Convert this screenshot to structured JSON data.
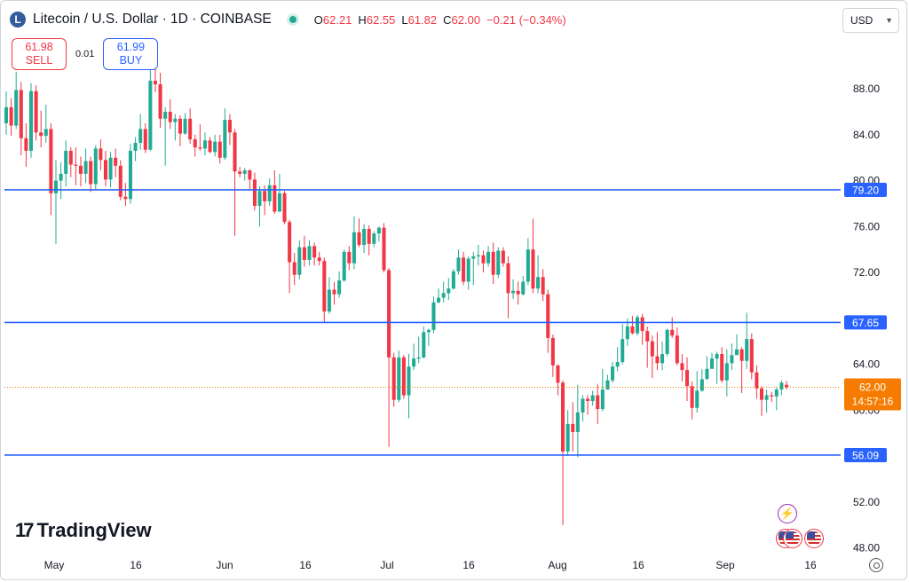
{
  "header": {
    "symbol_icon": "L",
    "title": "Litecoin / U.S. Dollar · 1D · COINBASE",
    "ohlc": [
      {
        "key": "O",
        "value": "62.21"
      },
      {
        "key": "H",
        "value": "62.55"
      },
      {
        "key": "L",
        "value": "61.82"
      },
      {
        "key": "C",
        "value": "62.00"
      }
    ],
    "change": "−0.21 (−0.34%)"
  },
  "currency": {
    "label": "USD",
    "icon": "chevron-down-icon"
  },
  "trade": {
    "sell_price": "61.98",
    "sell_label": "SELL",
    "spread": "0.01",
    "buy_price": "61.99",
    "buy_label": "BUY"
  },
  "branding": {
    "name": "TradingView"
  },
  "colors": {
    "up": "#22ab94",
    "down": "#f23645",
    "line": "#2962ff",
    "last_price": "#f57c00"
  },
  "chart_data": {
    "type": "candlestick",
    "title": "Litecoin / U.S. Dollar · 1D · COINBASE",
    "y_ticks": [
      "88.00",
      "84.00",
      "80.00",
      "76.00",
      "72.00",
      "64.00",
      "60.00",
      "52.00",
      "48.00"
    ],
    "x_ticks": [
      "May",
      "16",
      "Jun",
      "16",
      "Jul",
      "16",
      "Aug",
      "16",
      "Sep",
      "16"
    ],
    "ylim": [
      46.5,
      93.5
    ],
    "grid": false,
    "horizontal_lines": [
      {
        "value": 79.2,
        "label": "79.20"
      },
      {
        "value": 67.65,
        "label": "67.65"
      },
      {
        "value": 56.09,
        "label": "56.09"
      }
    ],
    "last_price": {
      "value": 62.0,
      "label": "62.00",
      "countdown": "14:57:16"
    },
    "candles": [
      [
        85.0,
        86.4,
        87.8,
        84.0
      ],
      [
        86.4,
        84.8,
        87.2,
        83.9
      ],
      [
        84.8,
        87.9,
        89.5,
        84.5
      ],
      [
        87.9,
        83.7,
        88.6,
        82.2
      ],
      [
        83.7,
        82.6,
        85.0,
        81.2
      ],
      [
        82.6,
        87.8,
        88.5,
        82.0
      ],
      [
        87.8,
        84.2,
        88.3,
        83.5
      ],
      [
        84.2,
        83.9,
        86.1,
        82.9
      ],
      [
        83.9,
        84.5,
        86.6,
        83.3
      ],
      [
        84.5,
        78.9,
        85.0,
        77.0
      ],
      [
        78.9,
        80.0,
        81.8,
        74.5
      ],
      [
        80.0,
        80.6,
        81.6,
        78.4
      ],
      [
        80.6,
        82.6,
        83.5,
        79.5
      ],
      [
        82.6,
        81.4,
        82.9,
        80.3
      ],
      [
        81.4,
        81.3,
        82.9,
        79.6
      ],
      [
        81.3,
        80.6,
        82.1,
        79.5
      ],
      [
        80.6,
        81.7,
        82.8,
        79.8
      ],
      [
        81.7,
        79.7,
        82.1,
        79.0
      ],
      [
        79.7,
        82.8,
        83.1,
        79.2
      ],
      [
        82.8,
        81.8,
        83.6,
        80.9
      ],
      [
        81.8,
        80.1,
        82.6,
        79.5
      ],
      [
        80.1,
        82.0,
        82.5,
        79.4
      ],
      [
        82.0,
        81.3,
        82.8,
        80.3
      ],
      [
        81.3,
        78.6,
        81.8,
        78.3
      ],
      [
        78.6,
        78.4,
        79.8,
        77.8
      ],
      [
        78.4,
        82.6,
        83.2,
        78.0
      ],
      [
        82.6,
        83.3,
        83.8,
        81.7
      ],
      [
        83.3,
        84.5,
        85.8,
        82.7
      ],
      [
        84.5,
        82.7,
        85.0,
        82.4
      ],
      [
        82.7,
        88.7,
        91.4,
        82.6
      ],
      [
        88.7,
        88.4,
        90.4,
        87.7
      ],
      [
        88.4,
        85.4,
        89.4,
        84.6
      ],
      [
        85.4,
        86.0,
        86.4,
        81.3
      ],
      [
        86.0,
        85.1,
        87.1,
        84.5
      ],
      [
        85.1,
        85.4,
        85.8,
        83.5
      ],
      [
        85.4,
        84.1,
        85.7,
        83.0
      ],
      [
        84.1,
        85.4,
        85.9,
        84.0
      ],
      [
        85.4,
        83.6,
        86.3,
        83.2
      ],
      [
        83.6,
        82.9,
        84.0,
        82.1
      ],
      [
        82.9,
        82.8,
        84.9,
        82.6
      ],
      [
        82.8,
        83.5,
        84.2,
        82.2
      ],
      [
        83.5,
        82.5,
        83.8,
        82.4
      ],
      [
        82.5,
        83.4,
        84.0,
        82.1
      ],
      [
        83.4,
        82.0,
        84.0,
        81.5
      ],
      [
        82.0,
        85.3,
        86.3,
        81.8
      ],
      [
        85.3,
        84.2,
        85.8,
        83.1
      ],
      [
        84.2,
        80.8,
        84.5,
        75.2
      ],
      [
        80.8,
        80.6,
        81.2,
        80.3
      ],
      [
        80.6,
        80.9,
        81.1,
        80.0
      ],
      [
        80.9,
        80.1,
        81.0,
        79.2
      ],
      [
        80.1,
        77.8,
        80.7,
        77.4
      ],
      [
        77.8,
        79.1,
        79.5,
        76.0
      ],
      [
        79.1,
        78.2,
        79.6,
        77.0
      ],
      [
        78.2,
        79.6,
        80.2,
        77.8
      ],
      [
        79.6,
        77.3,
        80.9,
        77.1
      ],
      [
        77.3,
        78.9,
        80.6,
        77.4
      ],
      [
        78.9,
        76.4,
        79.1,
        76.2
      ],
      [
        76.4,
        72.9,
        76.6,
        70.2
      ],
      [
        72.9,
        71.8,
        73.7,
        70.9
      ],
      [
        71.8,
        74.2,
        74.8,
        71.4
      ],
      [
        74.2,
        73.1,
        75.2,
        72.5
      ],
      [
        73.1,
        74.3,
        74.8,
        72.6
      ],
      [
        74.3,
        73.3,
        74.6,
        72.6
      ],
      [
        73.3,
        73.0,
        73.8,
        72.6
      ],
      [
        73.0,
        68.6,
        73.3,
        67.6
      ],
      [
        68.6,
        70.5,
        71.6,
        68.4
      ],
      [
        70.5,
        70.1,
        71.2,
        69.2
      ],
      [
        70.1,
        71.3,
        72.1,
        69.8
      ],
      [
        71.3,
        73.8,
        74.0,
        71.2
      ],
      [
        73.8,
        72.8,
        74.3,
        72.2
      ],
      [
        72.8,
        75.5,
        76.9,
        72.3
      ],
      [
        75.5,
        74.4,
        76.7,
        74.2
      ],
      [
        74.4,
        75.8,
        76.2,
        73.7
      ],
      [
        75.8,
        74.5,
        76.1,
        73.5
      ],
      [
        74.5,
        75.4,
        75.6,
        74.2
      ],
      [
        75.4,
        75.9,
        76.0,
        74.7
      ],
      [
        75.9,
        72.2,
        76.3,
        72.0
      ],
      [
        72.2,
        64.6,
        72.4,
        56.8
      ],
      [
        64.6,
        60.9,
        65.0,
        60.3
      ],
      [
        60.9,
        64.6,
        65.2,
        60.7
      ],
      [
        64.6,
        61.3,
        64.8,
        61.0
      ],
      [
        61.3,
        63.8,
        64.9,
        59.3
      ],
      [
        63.8,
        64.5,
        65.8,
        63.5
      ],
      [
        64.5,
        64.6,
        66.4,
        64.1
      ],
      [
        64.6,
        66.8,
        67.3,
        64.5
      ],
      [
        66.8,
        67.0,
        67.1,
        65.6
      ],
      [
        67.0,
        69.4,
        69.9,
        66.7
      ],
      [
        69.4,
        69.8,
        70.6,
        69.3
      ],
      [
        69.8,
        70.2,
        71.2,
        69.4
      ],
      [
        70.2,
        70.6,
        71.5,
        69.6
      ],
      [
        70.6,
        72.1,
        72.3,
        70.5
      ],
      [
        72.1,
        73.3,
        74.0,
        71.8
      ],
      [
        73.3,
        71.2,
        73.8,
        70.9
      ],
      [
        71.2,
        73.2,
        73.4,
        70.5
      ],
      [
        73.2,
        73.4,
        73.8,
        70.9
      ],
      [
        73.4,
        73.5,
        74.4,
        72.6
      ],
      [
        73.5,
        72.8,
        73.9,
        72.0
      ],
      [
        72.8,
        73.8,
        74.3,
        72.5
      ],
      [
        73.8,
        71.8,
        74.6,
        71.0
      ],
      [
        71.8,
        73.9,
        74.2,
        71.5
      ],
      [
        73.9,
        72.8,
        74.2,
        72.5
      ],
      [
        72.8,
        70.2,
        73.4,
        68.0
      ],
      [
        70.2,
        70.4,
        71.4,
        69.7
      ],
      [
        70.4,
        70.1,
        71.2,
        69.2
      ],
      [
        70.1,
        71.2,
        71.7,
        70.0
      ],
      [
        71.2,
        74.0,
        75.0,
        70.9
      ],
      [
        74.0,
        70.6,
        76.7,
        70.2
      ],
      [
        70.6,
        71.6,
        73.5,
        70.2
      ],
      [
        71.6,
        70.1,
        72.3,
        69.5
      ],
      [
        70.1,
        66.3,
        70.5,
        65.0
      ],
      [
        66.3,
        63.9,
        66.6,
        62.9
      ],
      [
        63.9,
        62.4,
        64.0,
        61.3
      ],
      [
        62.4,
        56.4,
        62.6,
        50.0
      ],
      [
        56.4,
        58.8,
        60.0,
        56.0
      ],
      [
        58.8,
        58.1,
        60.7,
        56.4
      ],
      [
        58.1,
        59.8,
        62.2,
        55.9
      ],
      [
        59.8,
        61.0,
        61.3,
        59.0
      ],
      [
        61.0,
        60.8,
        61.3,
        59.6
      ],
      [
        60.8,
        61.3,
        61.7,
        60.4
      ],
      [
        61.3,
        60.1,
        62.3,
        58.8
      ],
      [
        60.1,
        61.8,
        63.6,
        59.9
      ],
      [
        61.8,
        62.6,
        63.1,
        61.8
      ],
      [
        62.6,
        63.8,
        64.2,
        62.4
      ],
      [
        63.8,
        64.2,
        65.5,
        63.4
      ],
      [
        64.2,
        66.2,
        67.5,
        64.0
      ],
      [
        66.2,
        67.3,
        68.0,
        65.6
      ],
      [
        67.3,
        66.7,
        68.2,
        66.6
      ],
      [
        66.7,
        68.1,
        68.3,
        66.5
      ],
      [
        68.1,
        66.9,
        68.4,
        65.7
      ],
      [
        66.9,
        66.0,
        67.3,
        63.7
      ],
      [
        66.0,
        64.7,
        66.5,
        62.8
      ],
      [
        64.7,
        64.1,
        66.8,
        63.5
      ],
      [
        64.1,
        64.9,
        66.0,
        63.5
      ],
      [
        64.9,
        67.0,
        67.1,
        64.7
      ],
      [
        67.0,
        66.5,
        68.1,
        66.3
      ],
      [
        66.5,
        64.1,
        67.2,
        63.9
      ],
      [
        64.1,
        63.5,
        64.9,
        62.5
      ],
      [
        63.5,
        62.1,
        64.6,
        60.8
      ],
      [
        62.1,
        60.2,
        62.5,
        59.2
      ],
      [
        60.2,
        61.7,
        63.4,
        59.8
      ],
      [
        61.7,
        62.7,
        63.6,
        61.6
      ],
      [
        62.7,
        63.6,
        64.7,
        63.5
      ],
      [
        63.6,
        64.5,
        65.0,
        63.8
      ],
      [
        64.5,
        64.9,
        65.1,
        62.3
      ],
      [
        64.9,
        62.6,
        65.5,
        62.4
      ],
      [
        62.6,
        64.1,
        65.3,
        61.2
      ],
      [
        64.1,
        64.8,
        65.8,
        63.5
      ],
      [
        64.8,
        65.3,
        66.6,
        64.9
      ],
      [
        65.3,
        64.3,
        65.5,
        61.5
      ],
      [
        64.3,
        66.2,
        68.5,
        63.6
      ],
      [
        66.2,
        63.3,
        66.7,
        62.7
      ],
      [
        63.3,
        61.9,
        63.9,
        61.0
      ],
      [
        61.9,
        60.9,
        62.1,
        59.5
      ],
      [
        60.9,
        61.3,
        61.8,
        59.8
      ],
      [
        61.3,
        61.2,
        61.6,
        60.7
      ],
      [
        61.2,
        61.8,
        62.0,
        60.0
      ],
      [
        61.8,
        62.4,
        62.6,
        61.3
      ],
      [
        62.21,
        62.0,
        62.55,
        61.82
      ]
    ]
  }
}
